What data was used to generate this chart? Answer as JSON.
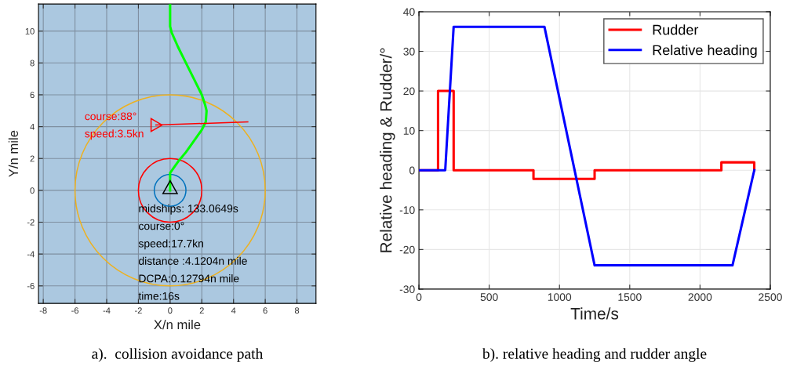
{
  "chart_data": [
    {
      "type": "line",
      "xlabel": "X/n mile",
      "ylabel": "Y/n mile",
      "xlim": [
        -8.3,
        9.2
      ],
      "ylim": [
        -7.1,
        11.7
      ],
      "xticks": [
        -8,
        -6,
        -4,
        -2,
        0,
        2,
        4,
        6,
        8
      ],
      "yticks": [
        -6,
        -4,
        -2,
        0,
        2,
        4,
        6,
        8,
        10
      ],
      "grid": true,
      "legend": false,
      "series": [
        {
          "color": "#00ff00",
          "x": [
            0,
            0,
            0.1,
            0.5,
            1,
            1.5,
            2,
            2.2,
            2.3,
            2.25,
            2.0,
            1.5,
            1,
            0.5,
            0,
            0
          ],
          "values": [
            11.7,
            10.3,
            9.9,
            9,
            8,
            7,
            6,
            5.4,
            5,
            4.3,
            3.8,
            3.1,
            2.4,
            1.8,
            1.1,
            0
          ]
        },
        {
          "color": "#ff0000",
          "x": [
            -0.9,
            4.9
          ],
          "values": [
            4.1,
            4.3
          ]
        }
      ],
      "annotations": [
        "course:88°",
        "speed:3.5kn",
        "midships: 133.0649s",
        "course:0°",
        "speed:17.7kn",
        "distance :4.1204n mile",
        "DCPA:0.12794n mile",
        "time:16s",
        "a).  collision avoidance path"
      ]
    },
    {
      "type": "line",
      "xlabel": "Time/s",
      "ylabel": "Relative heading & Rudder/°",
      "xlim": [
        0,
        2500
      ],
      "ylim": [
        -30,
        40
      ],
      "xticks": [
        0,
        500,
        1000,
        1500,
        2000,
        2500
      ],
      "yticks": [
        -30,
        -20,
        -10,
        0,
        10,
        20,
        30,
        40
      ],
      "grid": true,
      "legend": "top right",
      "series": [
        {
          "name": "Rudder",
          "color": "#ff0000",
          "x": [
            0,
            136,
            136,
            247,
            247,
            815,
            815,
            1250,
            1250,
            2152,
            2152,
            2386,
            2386
          ],
          "values": [
            0,
            0,
            20,
            20,
            0,
            0,
            -2.2,
            -2.2,
            0,
            0,
            2,
            2,
            0
          ]
        },
        {
          "name": "Relative heading",
          "color": "#0000ff",
          "x": [
            0,
            187,
            247,
            893,
            1250,
            2231,
            2386
          ],
          "values": [
            0,
            0,
            36.2,
            36.2,
            -24,
            -24,
            0
          ]
        }
      ],
      "annotations": [
        "b). relative heading and rudder angle"
      ]
    }
  ]
}
